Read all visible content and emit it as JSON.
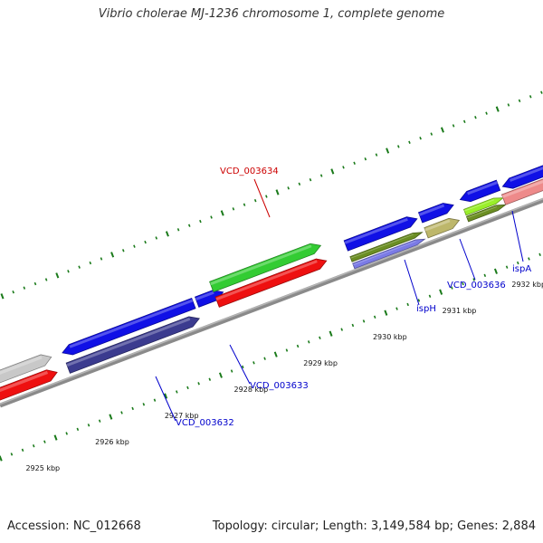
{
  "title": "Vibrio cholerae MJ-1236 chromosome 1, complete genome",
  "footer": {
    "accession": "Accession: NC_012668",
    "summary": "Topology: circular; Length: 3,149,584 bp; Genes: 2,884"
  },
  "colors": {
    "backbone": "#8a8a8a",
    "tick": "#1a7a1a",
    "label_blue": "#0000cc",
    "label_red": "#cc0000",
    "blue": "#1010e6",
    "red": "#ee1010",
    "green": "#33cc33",
    "navy": "#3b3b8f",
    "gray": "#c8c8c8",
    "olive": "#6b8e23",
    "lavender": "#7b7be6",
    "khaki": "#bdb76b",
    "lime": "#9aef2a",
    "salmon": "#ee8a8a"
  },
  "scale": {
    "start_kbp": 2925,
    "end_kbp": 2932,
    "tick_labels": [
      {
        "kbp": 2925,
        "text": "2925 kbp"
      },
      {
        "kbp": 2926,
        "text": "2926 kbp"
      },
      {
        "kbp": 2927,
        "text": "2927 kbp"
      },
      {
        "kbp": 2928,
        "text": "2928 kbp"
      },
      {
        "kbp": 2929,
        "text": "2929 kbp"
      },
      {
        "kbp": 2930,
        "text": "2930 kbp"
      },
      {
        "kbp": 2931,
        "text": "2931 kbp"
      },
      {
        "kbp": 2932,
        "text": "2932 kbp"
      }
    ]
  },
  "gene_labels": [
    {
      "name": "VCD_003634",
      "color": "label_red"
    },
    {
      "name": "VCD_003633",
      "color": "label_blue"
    },
    {
      "name": "VCD_003632",
      "color": "label_blue"
    },
    {
      "name": "ispH",
      "color": "label_blue"
    },
    {
      "name": "VCD_003636",
      "color": "label_blue"
    },
    {
      "name": "ispA",
      "color": "label_blue"
    }
  ]
}
